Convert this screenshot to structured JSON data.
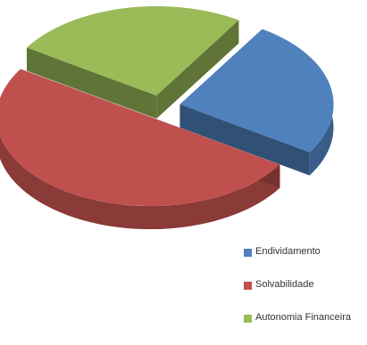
{
  "chart_data": {
    "type": "pie",
    "categories": [
      "Endividamento",
      "Solvabilidade",
      "Autonomia Financeira"
    ],
    "values": [
      25,
      50,
      25
    ],
    "colors": [
      "#4F81BD",
      "#C0504D",
      "#9BBB59"
    ],
    "legend_position": "bottom-right",
    "exploded": true,
    "three_d": true
  },
  "legend": {
    "items": [
      {
        "label": "Endividamento",
        "color": "#4F81BD"
      },
      {
        "label": "Solvabilidade",
        "color": "#C0504D"
      },
      {
        "label": "Autonomia Financeira",
        "color": "#9BBB59"
      }
    ]
  }
}
